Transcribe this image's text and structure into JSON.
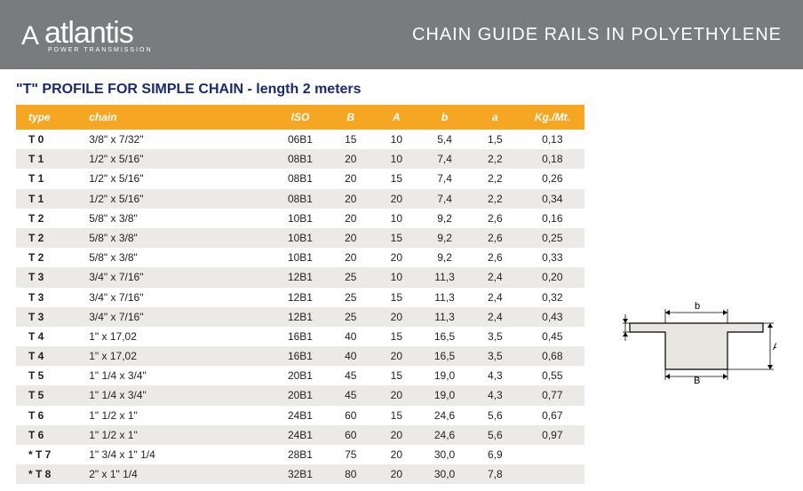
{
  "header": {
    "logo_text": "atlantis",
    "logo_sub": "POWER TRANSMISSION",
    "title": "CHAIN GUIDE RAILS IN POLYETHYLENE"
  },
  "section_title": "\"T\" PROFILE FOR SIMPLE CHAIN - length 2 meters",
  "columns": {
    "type": "type",
    "chain": "chain",
    "iso": "ISO",
    "B": "B",
    "A": "A",
    "b": "b",
    "a": "a",
    "kg": "Kg./Mt."
  },
  "rows": [
    {
      "type": "T 0",
      "chain": "3/8\"  x  7/32\"",
      "iso": "06B1",
      "B": "15",
      "A": "10",
      "b": "5,4",
      "a": "1,5",
      "kg": "0,13"
    },
    {
      "type": "T 1",
      "chain": "1/2\"  x  5/16\"",
      "iso": "08B1",
      "B": "20",
      "A": "10",
      "b": "7,4",
      "a": "2,2",
      "kg": "0,18"
    },
    {
      "type": "T 1",
      "chain": "1/2\"  x  5/16\"",
      "iso": "08B1",
      "B": "20",
      "A": "15",
      "b": "7,4",
      "a": "2,2",
      "kg": "0,26"
    },
    {
      "type": "T 1",
      "chain": "1/2\"  x  5/16\"",
      "iso": "08B1",
      "B": "20",
      "A": "20",
      "b": "7,4",
      "a": "2,2",
      "kg": "0,34"
    },
    {
      "type": "T 2",
      "chain": "5/8\"  x  3/8\"",
      "iso": "10B1",
      "B": "20",
      "A": "10",
      "b": "9,2",
      "a": "2,6",
      "kg": "0,16"
    },
    {
      "type": "T 2",
      "chain": "5/8\"  x  3/8\"",
      "iso": "10B1",
      "B": "20",
      "A": "15",
      "b": "9,2",
      "a": "2,6",
      "kg": "0,25"
    },
    {
      "type": "T 2",
      "chain": "5/8\"  x  3/8\"",
      "iso": "10B1",
      "B": "20",
      "A": "20",
      "b": "9,2",
      "a": "2,6",
      "kg": "0,33"
    },
    {
      "type": "T 3",
      "chain": "3/4\"  x  7/16\"",
      "iso": "12B1",
      "B": "25",
      "A": "10",
      "b": "11,3",
      "a": "2,4",
      "kg": "0,20"
    },
    {
      "type": "T 3",
      "chain": "3/4\"  x  7/16\"",
      "iso": "12B1",
      "B": "25",
      "A": "15",
      "b": "11,3",
      "a": "2,4",
      "kg": "0,32"
    },
    {
      "type": "T 3",
      "chain": "3/4\"  x  7/16\"",
      "iso": "12B1",
      "B": "25",
      "A": "20",
      "b": "11,3",
      "a": "2,4",
      "kg": "0,43"
    },
    {
      "type": "T 4",
      "chain": "   1\"  x  17,02",
      "iso": "16B1",
      "B": "40",
      "A": "15",
      "b": "16,5",
      "a": "3,5",
      "kg": "0,45"
    },
    {
      "type": "T 4",
      "chain": "   1\"  x  17,02",
      "iso": "16B1",
      "B": "40",
      "A": "20",
      "b": "16,5",
      "a": "3,5",
      "kg": "0,68"
    },
    {
      "type": "T 5",
      "chain": "1\" 1/4  x  3/4\"",
      "iso": "20B1",
      "B": "45",
      "A": "15",
      "b": "19,0",
      "a": "4,3",
      "kg": "0,55"
    },
    {
      "type": "T 5",
      "chain": "1\" 1/4  x  3/4\"",
      "iso": "20B1",
      "B": "45",
      "A": "20",
      "b": "19,0",
      "a": "4,3",
      "kg": "0,77"
    },
    {
      "type": "T 6",
      "chain": "1\" 1/2  x  1\"",
      "iso": "24B1",
      "B": "60",
      "A": "15",
      "b": "24,6",
      "a": "5,6",
      "kg": "0,67"
    },
    {
      "type": "T 6",
      "chain": "1\" 1/2  x  1\"",
      "iso": "24B1",
      "B": "60",
      "A": "20",
      "b": "24,6",
      "a": "5,6",
      "kg": "0,97"
    },
    {
      "type": "* T 7",
      "chain": "1\" 3/4  x  1\" 1/4",
      "iso": "28B1",
      "B": "75",
      "A": "20",
      "b": "30,0",
      "a": "6,9",
      "kg": ""
    },
    {
      "type": "* T 8",
      "chain": "   2\"  x  1\" 1/4",
      "iso": "32B1",
      "B": "80",
      "A": "20",
      "b": "30,0",
      "a": "7,8",
      "kg": ""
    }
  ],
  "diagram": {
    "labels": {
      "b": "b",
      "a": "a",
      "A": "A",
      "B": "B"
    },
    "stroke": "#000000",
    "fill": "#e8e6e1"
  }
}
